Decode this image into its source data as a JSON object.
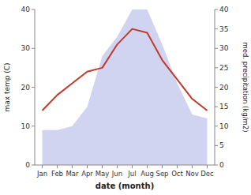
{
  "chart_data": {
    "type": "line",
    "xlabel": "date (month)",
    "ylabel": "max temp (C)",
    "y2label": "med. precipitation (kg/m2)",
    "categories": [
      "Jan",
      "Feb",
      "Mar",
      "Apr",
      "May",
      "Jun",
      "Jul",
      "Aug",
      "Sep",
      "Oct",
      "Nov",
      "Dec"
    ],
    "series": [
      {
        "type": "area",
        "axis": "y2",
        "color": "#b0b8e8",
        "values": [
          9,
          9,
          10,
          15,
          28,
          33,
          40,
          40,
          31,
          21,
          13,
          12
        ]
      },
      {
        "type": "line",
        "color": "#c0392b",
        "values": [
          14,
          18,
          21,
          24,
          25,
          31,
          35,
          34,
          27,
          22,
          17,
          14
        ]
      }
    ],
    "ylim": [
      0,
      40
    ],
    "yticks": [
      0,
      10,
      20,
      30,
      40
    ],
    "y2lim": [
      0,
      40
    ],
    "y2ticks": [
      0,
      5,
      10,
      15,
      20,
      25,
      30,
      35,
      40
    ],
    "grid": false
  }
}
